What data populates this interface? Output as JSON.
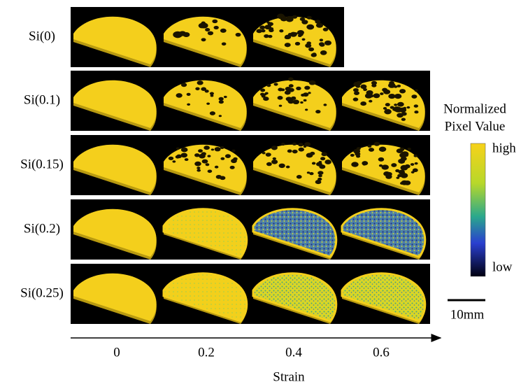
{
  "rows": [
    {
      "label": "Si(0)"
    },
    {
      "label": "Si(0.1)"
    },
    {
      "label": "Si(0.15)"
    },
    {
      "label": "Si(0.2)"
    },
    {
      "label": "Si(0.25)"
    }
  ],
  "strain_labels": [
    "0",
    "0.2",
    "0.4",
    "0.6"
  ],
  "axis_label": "Strain",
  "colorbar": {
    "title_line1": "Normalized",
    "title_line2": "Pixel Value",
    "high": "high",
    "low": "low"
  },
  "scale_bar": "10mm"
}
